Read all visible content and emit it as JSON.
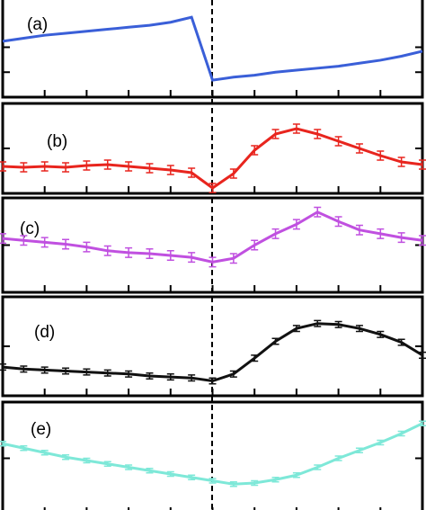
{
  "chart_data": [
    {
      "type": "line",
      "label": "(a)",
      "xlim": [
        0,
        20
      ],
      "ylim": [
        0,
        100
      ],
      "xticks": [
        2,
        4,
        6,
        8,
        10,
        12,
        14,
        16,
        18
      ],
      "yticks": [
        25,
        50
      ],
      "x": [
        0,
        1,
        2,
        3,
        4,
        5,
        6,
        7,
        8,
        9,
        10,
        11,
        12,
        13,
        14,
        15,
        16,
        17,
        18,
        19,
        20
      ],
      "series": [
        {
          "color": "#3a5fd8",
          "values": [
            56,
            59,
            62,
            64,
            66,
            68,
            70,
            72,
            75,
            80,
            17,
            20,
            22,
            25,
            27,
            29,
            31,
            34,
            37,
            41,
            46
          ]
        }
      ]
    },
    {
      "type": "line",
      "label": "(b)",
      "xlim": [
        0,
        20
      ],
      "ylim": [
        0,
        100
      ],
      "xticks": [
        2,
        4,
        6,
        8,
        10,
        12,
        14,
        16,
        18
      ],
      "yticks": [
        50
      ],
      "x": [
        0,
        1,
        2,
        3,
        4,
        5,
        6,
        7,
        8,
        9,
        10,
        11,
        12,
        13,
        14,
        15,
        16,
        17,
        18,
        19,
        20
      ],
      "series": [
        {
          "color": "#e8251e",
          "values": [
            30,
            29,
            30,
            29,
            31,
            32,
            30,
            28,
            26,
            23,
            6,
            22,
            48,
            66,
            72,
            66,
            58,
            50,
            42,
            35,
            32
          ],
          "error": 5
        }
      ]
    },
    {
      "type": "line",
      "label": "(c)",
      "xlim": [
        0,
        20
      ],
      "ylim": [
        0,
        100
      ],
      "xticks": [
        2,
        4,
        6,
        8,
        10,
        12,
        14,
        16,
        18
      ],
      "yticks": [
        50
      ],
      "x": [
        0,
        1,
        2,
        3,
        4,
        5,
        6,
        7,
        8,
        9,
        10,
        11,
        12,
        13,
        14,
        15,
        16,
        17,
        18,
        19,
        20
      ],
      "series": [
        {
          "color": "#c050e0",
          "values": [
            57,
            55,
            53,
            51,
            48,
            44,
            42,
            41,
            39,
            37,
            32,
            36,
            50,
            62,
            72,
            85,
            75,
            66,
            62,
            58,
            55
          ],
          "error": 5
        }
      ]
    },
    {
      "type": "line",
      "label": "(d)",
      "xlim": [
        0,
        20
      ],
      "ylim": [
        0,
        100
      ],
      "xticks": [
        2,
        4,
        6,
        8,
        10,
        12,
        14,
        16,
        18
      ],
      "yticks": [
        50
      ],
      "x": [
        0,
        1,
        2,
        3,
        4,
        5,
        6,
        7,
        8,
        9,
        10,
        11,
        12,
        13,
        14,
        15,
        16,
        17,
        18,
        19,
        20
      ],
      "series": [
        {
          "color": "#111111",
          "values": [
            29,
            27,
            26,
            25,
            24,
            23,
            22,
            20,
            19,
            18,
            15,
            22,
            38,
            55,
            68,
            73,
            72,
            68,
            62,
            54,
            41
          ],
          "error": 3
        }
      ]
    },
    {
      "type": "line",
      "label": "(e)",
      "xlim": [
        0,
        20
      ],
      "ylim": [
        0,
        100
      ],
      "xticks": [
        2,
        4,
        6,
        8,
        10,
        12,
        14,
        16,
        18
      ],
      "yticks": [
        50
      ],
      "x": [
        0,
        1,
        2,
        3,
        4,
        5,
        6,
        7,
        8,
        9,
        10,
        11,
        12,
        13,
        14,
        15,
        16,
        17,
        18,
        19,
        20
      ],
      "series": [
        {
          "color": "#7ee8d8",
          "values": [
            63,
            59,
            55,
            51,
            48,
            45,
            42,
            39,
            36,
            33,
            30,
            27,
            28,
            31,
            35,
            42,
            50,
            57,
            64,
            72,
            81
          ],
          "error": 2
        }
      ]
    }
  ]
}
